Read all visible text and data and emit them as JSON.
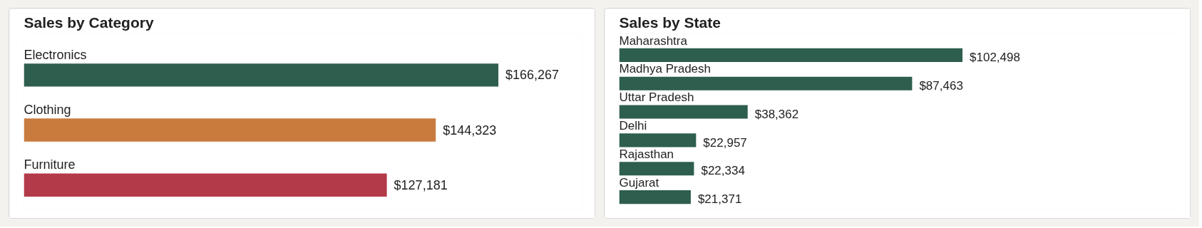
{
  "chart_data": [
    {
      "type": "bar",
      "orientation": "horizontal",
      "title": "Sales by Category",
      "categories": [
        "Electronics",
        "Clothing",
        "Furniture"
      ],
      "values": [
        166267,
        144323,
        127181
      ],
      "colors": [
        "#2e5e4e",
        "#c97b3e",
        "#b33a48"
      ],
      "value_labels": [
        "$166,267",
        "$144,323",
        "$127,181"
      ]
    },
    {
      "type": "bar",
      "orientation": "horizontal",
      "title": "Sales by State",
      "categories": [
        "Maharashtra",
        "Madhya Pradesh",
        "Uttar Pradesh",
        "Delhi",
        "Rajasthan",
        "Gujarat"
      ],
      "values": [
        102498,
        87463,
        38362,
        22957,
        22334,
        21371
      ],
      "color": "#2e5e4e",
      "value_labels": [
        "$102,498",
        "$87,463",
        "$38,362",
        "$22,957",
        "$22,334",
        "$21,371"
      ]
    }
  ]
}
